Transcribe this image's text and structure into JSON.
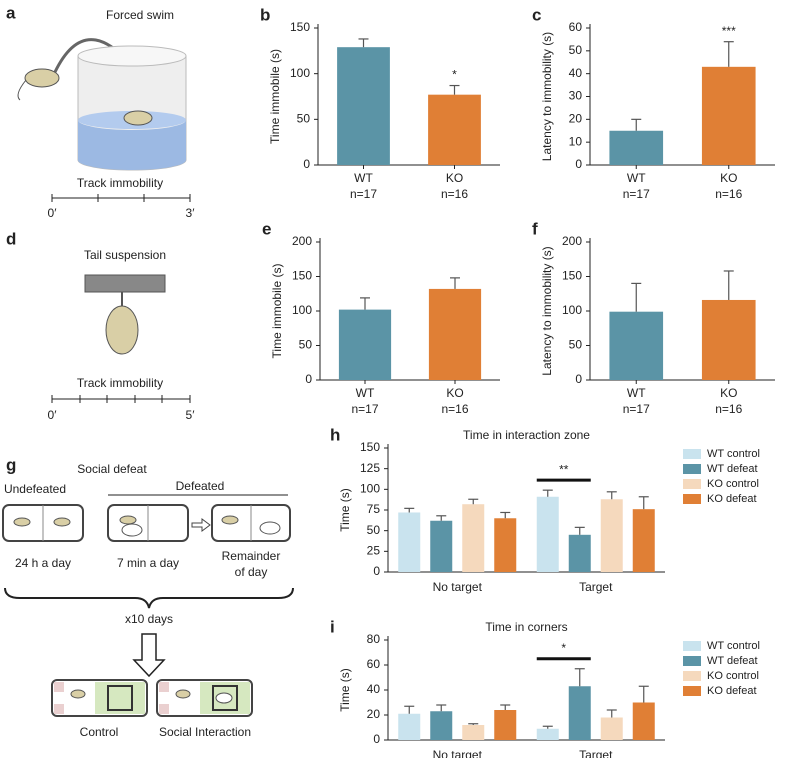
{
  "chart_data": [
    {
      "type": "bar",
      "label": "b",
      "ylabel": "Time immobile (s)",
      "categories": [
        "WT",
        "KO"
      ],
      "n_labels": [
        "n=17",
        "n=16"
      ],
      "values": [
        129,
        77
      ],
      "errors": [
        9,
        10
      ],
      "colors": [
        "#5b94a6",
        "#e07f35"
      ],
      "sig_labels": [
        null,
        "*"
      ],
      "ylim": [
        0,
        150
      ],
      "yticks": [
        0,
        50,
        100,
        150
      ]
    },
    {
      "type": "bar",
      "label": "c",
      "ylabel": "Latency to immobility (s)",
      "categories": [
        "WT",
        "KO"
      ],
      "n_labels": [
        "n=17",
        "n=16"
      ],
      "values": [
        15,
        43
      ],
      "errors": [
        5,
        11
      ],
      "colors": [
        "#5b94a6",
        "#e07f35"
      ],
      "sig_labels": [
        null,
        "***"
      ],
      "ylim": [
        0,
        60
      ],
      "yticks": [
        0,
        10,
        20,
        30,
        40,
        50,
        60
      ]
    },
    {
      "type": "bar",
      "label": "e",
      "ylabel": "Time immobile (s)",
      "categories": [
        "WT",
        "KO"
      ],
      "n_labels": [
        "n=17",
        "n=16"
      ],
      "values": [
        102,
        132
      ],
      "errors": [
        17,
        16
      ],
      "colors": [
        "#5b94a6",
        "#e07f35"
      ],
      "ylim": [
        0,
        200
      ],
      "yticks": [
        0,
        50,
        100,
        150,
        200
      ]
    },
    {
      "type": "bar",
      "label": "f",
      "ylabel": "Latency to immobility (s)",
      "categories": [
        "WT",
        "KO"
      ],
      "n_labels": [
        "n=17",
        "n=16"
      ],
      "values": [
        99,
        116
      ],
      "errors": [
        41,
        42
      ],
      "colors": [
        "#5b94a6",
        "#e07f35"
      ],
      "ylim": [
        0,
        200
      ],
      "yticks": [
        0,
        50,
        100,
        150,
        200
      ]
    },
    {
      "type": "grouped_bar",
      "label": "h",
      "title": "Time in interaction zone",
      "ylabel": "Time (s)",
      "categories": [
        "No target",
        "Target"
      ],
      "series": [
        {
          "name": "WT control",
          "color": "#c9e3ee",
          "values": [
            72,
            91
          ],
          "errors": [
            5,
            8
          ]
        },
        {
          "name": "WT defeat",
          "color": "#5b94a6",
          "values": [
            62,
            45
          ],
          "errors": [
            6,
            9
          ]
        },
        {
          "name": "KO control",
          "color": "#f5d9bd",
          "values": [
            82,
            88
          ],
          "errors": [
            6,
            9
          ]
        },
        {
          "name": "KO defeat",
          "color": "#e07f35",
          "values": [
            65,
            76
          ],
          "errors": [
            7,
            15
          ]
        }
      ],
      "significance": {
        "label": "**",
        "category": 1,
        "series": [
          0,
          1
        ]
      },
      "ylim": [
        0,
        150
      ],
      "yticks": [
        0,
        25,
        50,
        75,
        100,
        125,
        150
      ]
    },
    {
      "type": "grouped_bar",
      "label": "i",
      "title": "Time in corners",
      "ylabel": "Time (s)",
      "categories": [
        "No target",
        "Target"
      ],
      "series": [
        {
          "name": "WT control",
          "color": "#c9e3ee",
          "values": [
            21,
            9
          ],
          "errors": [
            6,
            2
          ]
        },
        {
          "name": "WT defeat",
          "color": "#5b94a6",
          "values": [
            23,
            43
          ],
          "errors": [
            5,
            14
          ]
        },
        {
          "name": "KO control",
          "color": "#f5d9bd",
          "values": [
            12,
            18
          ],
          "errors": [
            1,
            6
          ]
        },
        {
          "name": "KO defeat",
          "color": "#e07f35",
          "values": [
            24,
            30
          ],
          "errors": [
            4,
            13
          ]
        }
      ],
      "significance": {
        "label": "*",
        "category": 1,
        "series": [
          0,
          1
        ]
      },
      "ylim": [
        0,
        80
      ],
      "yticks": [
        0,
        20,
        40,
        60,
        80
      ]
    }
  ],
  "diagrams": {
    "a": {
      "label": "a",
      "title": "Forced swim",
      "track": "Track immobility",
      "start": "0′",
      "end": "3′"
    },
    "d": {
      "label": "d",
      "title": "Tail suspension",
      "track": "Track immobility",
      "start": "0′",
      "end": "5′"
    },
    "g": {
      "label": "g",
      "title": "Social defeat",
      "undefeated": "Undefeated",
      "defeated": "Defeated",
      "t1": "24 h a day",
      "t2": "7 min a day",
      "t3": [
        "Remainder",
        "of day"
      ],
      "repeat": "x10 days",
      "control": "Control",
      "social": "Social Interaction"
    }
  }
}
